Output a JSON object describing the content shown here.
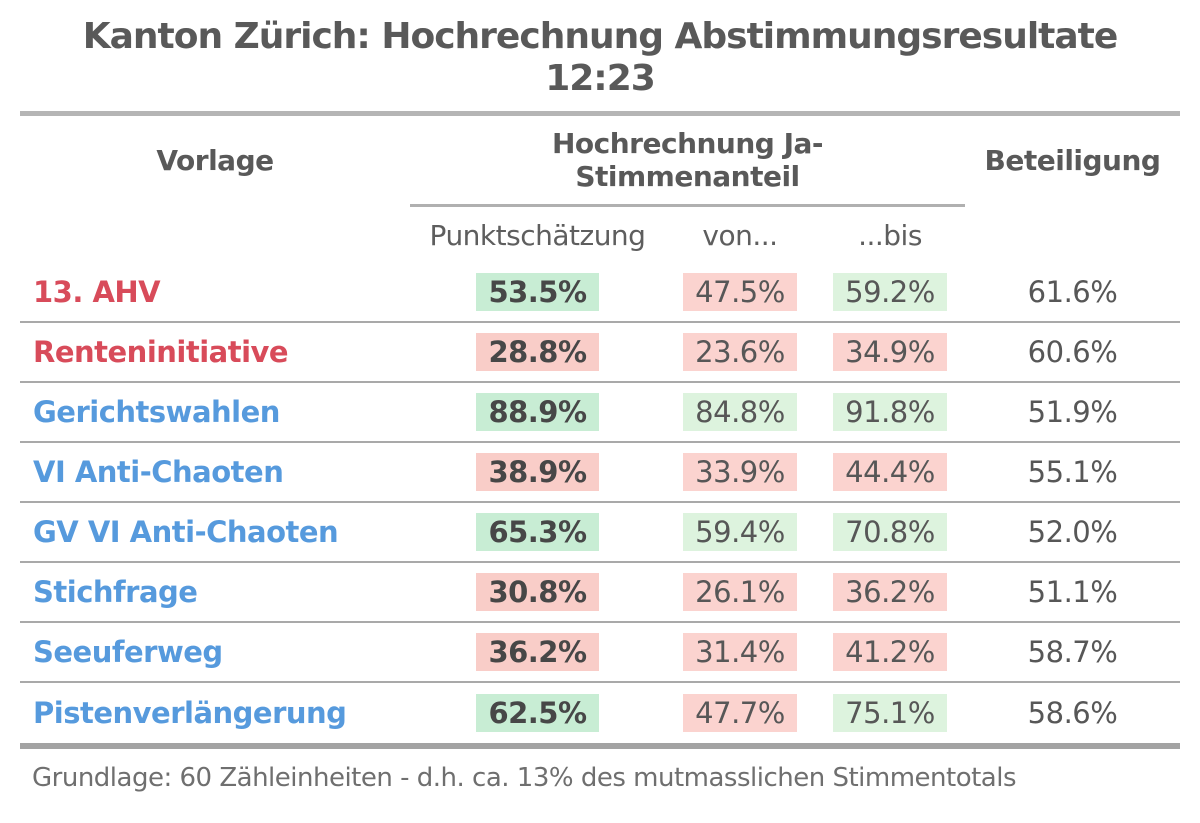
{
  "title": {
    "line1": "Kanton Zürich: Hochrechnung Abstimmungsresultate",
    "line2": "12:23"
  },
  "header": {
    "vorlage": "Vorlage",
    "group_line1": "Hochrechnung Ja-",
    "group_line2": "Stimmenanteil",
    "beteiligung": "Beteiligung",
    "sub": [
      "Punktschätzung",
      "von...",
      "...bis"
    ]
  },
  "rows": [
    {
      "label": "13. AHV",
      "label_color": "red",
      "point": {
        "value": "53.5%",
        "tone": "green_strong"
      },
      "von": {
        "value": "47.5%",
        "tone": "red_light"
      },
      "bis": {
        "value": "59.2%",
        "tone": "green_light"
      },
      "beteiligung": "61.6%"
    },
    {
      "label": "Renteninitiative",
      "label_color": "red",
      "point": {
        "value": "28.8%",
        "tone": "red_strong"
      },
      "von": {
        "value": "23.6%",
        "tone": "red_light"
      },
      "bis": {
        "value": "34.9%",
        "tone": "red_light"
      },
      "beteiligung": "60.6%"
    },
    {
      "label": "Gerichtswahlen",
      "label_color": "blue",
      "point": {
        "value": "88.9%",
        "tone": "green_strong"
      },
      "von": {
        "value": "84.8%",
        "tone": "green_light"
      },
      "bis": {
        "value": "91.8%",
        "tone": "green_light"
      },
      "beteiligung": "51.9%"
    },
    {
      "label": "VI Anti-Chaoten",
      "label_color": "blue",
      "point": {
        "value": "38.9%",
        "tone": "red_strong"
      },
      "von": {
        "value": "33.9%",
        "tone": "red_light"
      },
      "bis": {
        "value": "44.4%",
        "tone": "red_light"
      },
      "beteiligung": "55.1%"
    },
    {
      "label": "GV VI Anti-Chaoten",
      "label_color": "blue",
      "point": {
        "value": "65.3%",
        "tone": "green_strong"
      },
      "von": {
        "value": "59.4%",
        "tone": "green_light"
      },
      "bis": {
        "value": "70.8%",
        "tone": "green_light"
      },
      "beteiligung": "52.0%"
    },
    {
      "label": "Stichfrage",
      "label_color": "blue",
      "point": {
        "value": "30.8%",
        "tone": "red_strong"
      },
      "von": {
        "value": "26.1%",
        "tone": "red_light"
      },
      "bis": {
        "value": "36.2%",
        "tone": "red_light"
      },
      "beteiligung": "51.1%"
    },
    {
      "label": "Seeuferweg",
      "label_color": "blue",
      "point": {
        "value": "36.2%",
        "tone": "red_strong"
      },
      "von": {
        "value": "31.4%",
        "tone": "red_light"
      },
      "bis": {
        "value": "41.2%",
        "tone": "red_light"
      },
      "beteiligung": "58.7%"
    },
    {
      "label": "Pistenverlängerung",
      "label_color": "blue",
      "point": {
        "value": "62.5%",
        "tone": "green_strong"
      },
      "von": {
        "value": "47.7%",
        "tone": "red_light"
      },
      "bis": {
        "value": "75.1%",
        "tone": "green_light"
      },
      "beteiligung": "58.6%"
    }
  ],
  "footer": {
    "note": "Grundlage: 60 Zähleinheiten - d.h. ca. 13% des mutmasslichen Stimmentotals"
  },
  "colors": {
    "green_strong": "#c8edd4",
    "green_light": "#ddf3de",
    "red_strong": "#f9cdc8",
    "red_light": "#fbd3cf",
    "label_red": "#d84b5a",
    "label_blue": "#569add",
    "heading_text": "#595959",
    "number_text": "#575757",
    "footer_text": "#6f6f6f"
  },
  "chart_data": {
    "type": "table",
    "title": "Kanton Zürich: Hochrechnung Abstimmungsresultate 12:23",
    "columns": [
      "Vorlage",
      "Punktschätzung",
      "von...",
      "...bis",
      "Beteiligung"
    ],
    "column_group": {
      "label": "Hochrechnung Ja-Stimmenanteil",
      "spans": [
        "Punktschätzung",
        "von...",
        "...bis"
      ]
    },
    "rows": [
      [
        "13. AHV",
        "53.5%",
        "47.5%",
        "59.2%",
        "61.6%"
      ],
      [
        "Renteninitiative",
        "28.8%",
        "23.6%",
        "34.9%",
        "60.6%"
      ],
      [
        "Gerichtswahlen",
        "88.9%",
        "84.8%",
        "91.8%",
        "51.9%"
      ],
      [
        "VI Anti-Chaoten",
        "38.9%",
        "33.9%",
        "44.4%",
        "55.1%"
      ],
      [
        "GV VI Anti-Chaoten",
        "65.3%",
        "59.4%",
        "70.8%",
        "52.0%"
      ],
      [
        "Stichfrage",
        "30.8%",
        "26.1%",
        "36.2%",
        "51.1%"
      ],
      [
        "Seeuferweg",
        "36.2%",
        "31.4%",
        "41.2%",
        "58.7%"
      ],
      [
        "Pistenverlängerung",
        "62.5%",
        "47.7%",
        "75.1%",
        "58.6%"
      ]
    ],
    "footnote": "Grundlage: 60 Zähleinheiten - d.h. ca. 13% des mutmasslichen Stimmentotals"
  }
}
